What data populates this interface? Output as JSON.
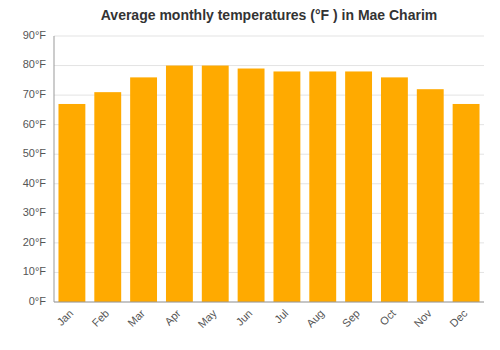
{
  "chart_data": {
    "type": "bar",
    "title": "Average monthly temperatures (°F ) in Mae Charim",
    "categories": [
      "Jan",
      "Feb",
      "Mar",
      "Apr",
      "May",
      "Jun",
      "Jul",
      "Aug",
      "Sep",
      "Oct",
      "Nov",
      "Dec"
    ],
    "values": [
      67,
      71,
      76,
      80,
      80,
      79,
      78,
      78,
      78,
      76,
      72,
      67
    ],
    "color": "#FFAA00",
    "ylim": [
      0,
      90
    ],
    "yticks": [
      {
        "value": 0,
        "label": "0°F"
      },
      {
        "value": 10,
        "label": "10°F"
      },
      {
        "value": 20,
        "label": "20°F"
      },
      {
        "value": 30,
        "label": "30°F"
      },
      {
        "value": 40,
        "label": "40°F"
      },
      {
        "value": 50,
        "label": "50°F"
      },
      {
        "value": 60,
        "label": "60°F"
      },
      {
        "value": 70,
        "label": "70°F"
      },
      {
        "value": 80,
        "label": "80°F"
      },
      {
        "value": 90,
        "label": "90°F"
      }
    ],
    "grid": true
  }
}
